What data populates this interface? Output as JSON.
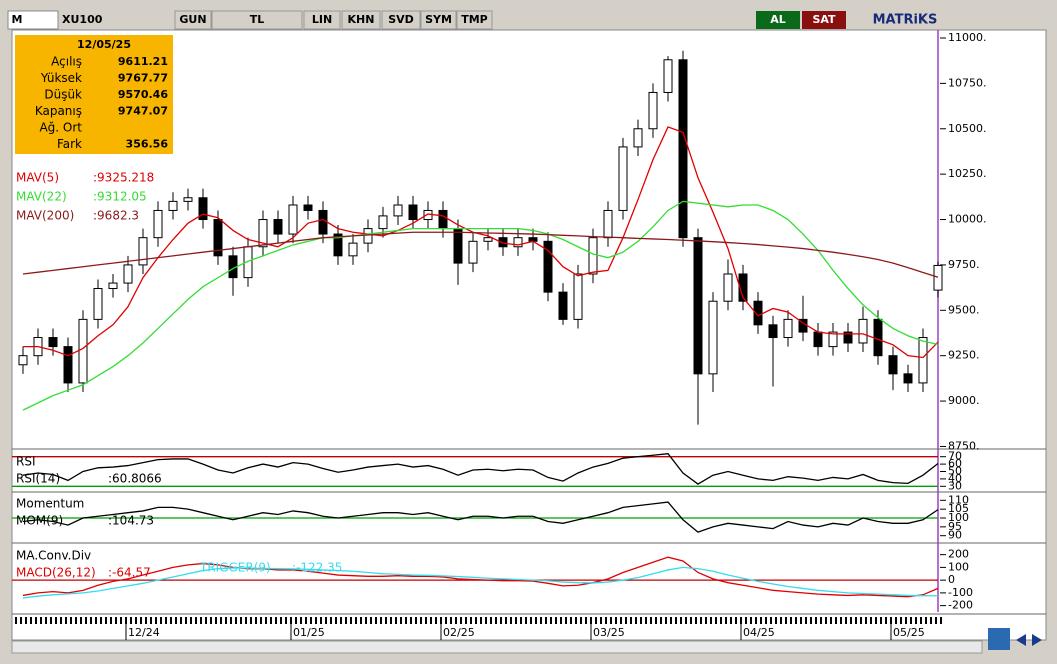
{
  "toolbar": {
    "logo": "M",
    "symbol": "XU100",
    "buttons": [
      "GUN",
      "TL",
      "LIN",
      "KHN",
      "SVD",
      "SYM",
      "TMP"
    ],
    "buy": "AL",
    "sell": "SAT",
    "brand": "MATRiKS"
  },
  "info": {
    "date": "12/05/25",
    "rows": [
      {
        "label": "Açılış",
        "value": 9611.21
      },
      {
        "label": "Yüksek",
        "value": 9767.77
      },
      {
        "label": "Düşük",
        "value": 9570.46
      },
      {
        "label": "Kapanış",
        "value": 9747.07
      },
      {
        "label": "Ağ. Ort"
      },
      {
        "label": "Fark",
        "value": 356.56
      }
    ]
  },
  "chart_data": [
    {
      "type": "candlestick",
      "categories": [
        null,
        null,
        null,
        null,
        null,
        null,
        null,
        "12/24",
        null,
        null,
        null,
        null,
        null,
        null,
        null,
        null,
        null,
        null,
        "01/25",
        null,
        null,
        null,
        null,
        null,
        null,
        null,
        null,
        null,
        "02/25",
        null,
        null,
        null,
        null,
        null,
        null,
        null,
        null,
        null,
        "03/25",
        null,
        null,
        null,
        null,
        null,
        null,
        null,
        null,
        null,
        "04/25",
        null,
        null,
        null,
        null,
        null,
        null,
        null,
        null,
        null,
        "05/25",
        null,
        null,
        null
      ],
      "candles": [
        [
          9200,
          9300,
          9150,
          9250
        ],
        [
          9250,
          9400,
          9200,
          9350
        ],
        [
          9350,
          9400,
          9250,
          9300
        ],
        [
          9300,
          9350,
          9050,
          9100
        ],
        [
          9100,
          9500,
          9050,
          9450
        ],
        [
          9450,
          9670,
          9400,
          9620
        ],
        [
          9620,
          9700,
          9570,
          9650
        ],
        [
          9650,
          9800,
          9600,
          9750
        ],
        [
          9750,
          9950,
          9700,
          9900
        ],
        [
          9900,
          10100,
          9850,
          10050
        ],
        [
          10050,
          10150,
          10000,
          10100
        ],
        [
          10100,
          10170,
          10050,
          10120
        ],
        [
          10120,
          10170,
          9950,
          10000
        ],
        [
          10000,
          10050,
          9750,
          9800
        ],
        [
          9800,
          9850,
          9580,
          9680
        ],
        [
          9680,
          9900,
          9630,
          9850
        ],
        [
          9850,
          10050,
          9800,
          10000
        ],
        [
          10000,
          10050,
          9870,
          9920
        ],
        [
          9920,
          10130,
          9870,
          10080
        ],
        [
          10080,
          10130,
          10000,
          10050
        ],
        [
          10050,
          10100,
          9870,
          9920
        ],
        [
          9920,
          9970,
          9750,
          9800
        ],
        [
          9800,
          9920,
          9750,
          9870
        ],
        [
          9870,
          10000,
          9820,
          9950
        ],
        [
          9950,
          10070,
          9900,
          10020
        ],
        [
          10020,
          10130,
          9970,
          10080
        ],
        [
          10080,
          10130,
          9950,
          10000
        ],
        [
          10000,
          10100,
          9950,
          10050
        ],
        [
          10050,
          10100,
          9900,
          9950
        ],
        [
          9950,
          10000,
          9640,
          9760
        ],
        [
          9760,
          9930,
          9710,
          9880
        ],
        [
          9880,
          9950,
          9830,
          9900
        ],
        [
          9900,
          9950,
          9800,
          9850
        ],
        [
          9850,
          9950,
          9800,
          9900
        ],
        [
          9900,
          9950,
          9830,
          9880
        ],
        [
          9880,
          9930,
          9550,
          9600
        ],
        [
          9600,
          9650,
          9420,
          9450
        ],
        [
          9450,
          9750,
          9400,
          9700
        ],
        [
          9700,
          9950,
          9650,
          9900
        ],
        [
          9900,
          10100,
          9850,
          10050
        ],
        [
          10050,
          10450,
          10000,
          10400
        ],
        [
          10400,
          10550,
          10350,
          10500
        ],
        [
          10500,
          10750,
          10450,
          10700
        ],
        [
          10700,
          10900,
          10650,
          10880
        ],
        [
          10880,
          10930,
          9850,
          9900
        ],
        [
          9900,
          9950,
          8870,
          9150
        ],
        [
          9150,
          9600,
          9050,
          9550
        ],
        [
          9550,
          9780,
          9500,
          9700
        ],
        [
          9700,
          9750,
          9500,
          9550
        ],
        [
          9550,
          9600,
          9370,
          9420
        ],
        [
          9420,
          9470,
          9080,
          9350
        ],
        [
          9350,
          9500,
          9300,
          9450
        ],
        [
          9450,
          9580,
          9330,
          9380
        ],
        [
          9380,
          9430,
          9250,
          9300
        ],
        [
          9300,
          9430,
          9250,
          9380
        ],
        [
          9380,
          9430,
          9270,
          9320
        ],
        [
          9320,
          9520,
          9270,
          9450
        ],
        [
          9450,
          9500,
          9200,
          9250
        ],
        [
          9250,
          9300,
          9060,
          9150
        ],
        [
          9150,
          9200,
          9050,
          9100
        ],
        [
          9100,
          9400,
          9050,
          9350
        ],
        [
          9611.21,
          9767.77,
          9570.46,
          9747.07
        ]
      ],
      "series": [
        {
          "name": "MAV(5)",
          "legend_value": ":9325.218",
          "color": "#e00000",
          "values": [
            9300,
            9300,
            9280,
            9250,
            9290,
            9360,
            9420,
            9520,
            9680,
            9790,
            9890,
            9980,
            10030,
            10010,
            9940,
            9890,
            9870,
            9850,
            9900,
            9980,
            10000,
            9950,
            9930,
            9920,
            9910,
            9940,
            9980,
            10030,
            10020,
            9970,
            9930,
            9910,
            9870,
            9860,
            9880,
            9830,
            9740,
            9690,
            9710,
            9720,
            9900,
            10110,
            10330,
            10510,
            10480,
            10230,
            10040,
            9840,
            9570,
            9470,
            9510,
            9490,
            9430,
            9380,
            9370,
            9370,
            9370,
            9340,
            9310,
            9250,
            9240,
            9325.218
          ]
        },
        {
          "name": "MAV(22)",
          "legend_value": ":9312.05",
          "color": "#33dd33",
          "values": [
            8950,
            8990,
            9030,
            9060,
            9090,
            9140,
            9190,
            9250,
            9320,
            9400,
            9480,
            9560,
            9630,
            9680,
            9730,
            9770,
            9800,
            9830,
            9860,
            9880,
            9900,
            9900,
            9910,
            9920,
            9930,
            9940,
            9950,
            9950,
            9950,
            9950,
            9950,
            9950,
            9950,
            9950,
            9940,
            9920,
            9890,
            9850,
            9810,
            9790,
            9820,
            9880,
            9960,
            10050,
            10100,
            10090,
            10080,
            10070,
            10080,
            10080,
            10050,
            10000,
            9920,
            9830,
            9720,
            9620,
            9530,
            9460,
            9400,
            9360,
            9330,
            9312.05
          ]
        },
        {
          "name": "MAV(200)",
          "legend_value": ":9682.3",
          "color": "#8b1a1a",
          "values": [
            9700,
            9710,
            9720,
            9730,
            9740,
            9750,
            9760,
            9770,
            9780,
            9790,
            9800,
            9810,
            9820,
            9830,
            9840,
            9850,
            9860,
            9870,
            9880,
            9890,
            9900,
            9905,
            9910,
            9915,
            9920,
            9925,
            9930,
            9930,
            9930,
            9930,
            9928,
            9926,
            9924,
            9922,
            9920,
            9917,
            9913,
            9910,
            9906,
            9903,
            9900,
            9896,
            9893,
            9890,
            9886,
            9882,
            9878,
            9873,
            9868,
            9862,
            9855,
            9848,
            9840,
            9830,
            9820,
            9808,
            9795,
            9780,
            9760,
            9735,
            9708,
            9682.3
          ]
        }
      ],
      "ylim": [
        8747,
        11044
      ],
      "yticks": [
        {
          "value": 8750,
          "label": "8750."
        },
        {
          "value": 9000,
          "label": "9000."
        },
        {
          "value": 9250,
          "label": "9250."
        },
        {
          "value": 9500,
          "label": "9500."
        },
        {
          "value": 9750,
          "label": "9750."
        },
        {
          "value": 10000,
          "label": "10000."
        },
        {
          "value": 10250,
          "label": "10250."
        },
        {
          "value": 10500,
          "label": "10500."
        },
        {
          "value": 10750,
          "label": "10750."
        },
        {
          "value": 11000,
          "label": "11000."
        }
      ]
    },
    {
      "type": "line",
      "title": "RSI",
      "series": [
        {
          "name": "RSI(14)",
          "legend_value": ":60.8066",
          "color": "#000000",
          "values": [
            45,
            48,
            46,
            38,
            50,
            55,
            56,
            58,
            62,
            66,
            67,
            67,
            60,
            52,
            48,
            55,
            60,
            56,
            62,
            60,
            54,
            49,
            52,
            56,
            58,
            60,
            56,
            58,
            53,
            45,
            52,
            53,
            51,
            53,
            52,
            42,
            37,
            48,
            56,
            61,
            68,
            70,
            72,
            74,
            48,
            33,
            45,
            50,
            45,
            40,
            38,
            43,
            41,
            38,
            42,
            40,
            46,
            38,
            35,
            34,
            45,
            60.8066
          ]
        }
      ],
      "levels": [
        {
          "value": 70,
          "color": "#c00000"
        },
        {
          "value": 30,
          "color": "#00a000"
        }
      ],
      "ylim": [
        25,
        75
      ],
      "yticks": [
        30,
        40,
        50,
        60,
        70
      ]
    },
    {
      "type": "line",
      "title": "Momentum",
      "series": [
        {
          "name": "MOM(9)",
          "legend_value": ":104.73",
          "color": "#000000",
          "values": [
            98,
            99,
            98,
            96,
            100,
            101,
            102,
            103,
            104,
            106,
            106,
            105,
            103,
            101,
            99,
            101,
            103,
            102,
            104,
            103,
            101,
            100,
            101,
            102,
            103,
            103,
            102,
            103,
            101,
            99,
            101,
            101,
            100,
            101,
            101,
            98,
            97,
            99,
            101,
            103,
            106,
            107,
            108,
            109,
            99,
            92,
            95,
            97,
            96,
            95,
            94,
            98,
            96,
            95,
            97,
            96,
            100,
            98,
            97,
            97,
            99,
            104.73
          ]
        }
      ],
      "levels": [
        {
          "value": 100,
          "color": "#00a000"
        }
      ],
      "ylim": [
        87,
        113
      ],
      "yticks": [
        90,
        95,
        100,
        105,
        110
      ]
    },
    {
      "type": "line",
      "title": "MA.Conv.Div",
      "series": [
        {
          "name": "MACD(26,12)",
          "legend_value": ":-64.57",
          "color": "#e00000",
          "values": [
            -120,
            -100,
            -90,
            -100,
            -80,
            -40,
            -10,
            10,
            40,
            70,
            100,
            120,
            130,
            120,
            100,
            90,
            90,
            80,
            80,
            70,
            55,
            40,
            35,
            30,
            30,
            35,
            30,
            30,
            25,
            10,
            5,
            0,
            -5,
            -5,
            -8,
            -25,
            -45,
            -40,
            -20,
            10,
            60,
            100,
            140,
            180,
            150,
            60,
            10,
            -20,
            -40,
            -60,
            -80,
            -90,
            -100,
            -110,
            -115,
            -120,
            -115,
            -120,
            -125,
            -130,
            -115,
            -64.57
          ]
        },
        {
          "name": "TRIGGER(9)",
          "legend_value": ":-122.35",
          "color": "#33ddee",
          "values": [
            -140,
            -125,
            -115,
            -108,
            -100,
            -85,
            -65,
            -45,
            -25,
            0,
            25,
            50,
            75,
            90,
            95,
            95,
            92,
            90,
            88,
            85,
            80,
            75,
            70,
            60,
            50,
            45,
            40,
            38,
            33,
            28,
            22,
            15,
            10,
            5,
            0,
            -5,
            -15,
            -20,
            -22,
            -15,
            0,
            20,
            50,
            80,
            100,
            90,
            70,
            40,
            15,
            -10,
            -30,
            -50,
            -65,
            -80,
            -90,
            -100,
            -105,
            -110,
            -115,
            -120,
            -122,
            -122.35
          ]
        }
      ],
      "levels": [
        {
          "value": 0,
          "color": "#c00000"
        }
      ],
      "ylim": [
        -250,
        260
      ],
      "yticks": [
        -200,
        -100,
        0,
        100,
        200
      ]
    }
  ]
}
